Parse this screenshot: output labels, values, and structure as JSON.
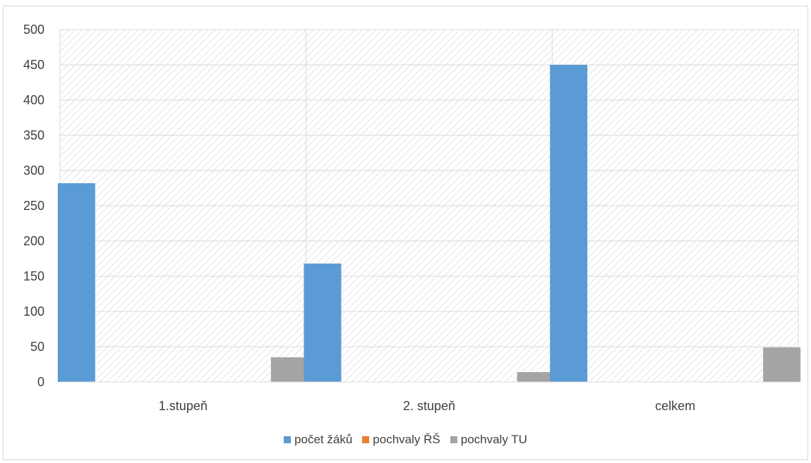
{
  "chart_data": {
    "type": "bar",
    "title": "",
    "xlabel": "",
    "ylabel": "",
    "categories": [
      "1.stupeň",
      "2. stupeň",
      "celkem"
    ],
    "series": [
      {
        "name": "počet žáků",
        "values": [
          282,
          168,
          450
        ],
        "color": "#5b9bd5"
      },
      {
        "name": "pochvaly ŘŠ",
        "values": [
          0,
          0,
          0
        ],
        "color": "#ed7d31"
      },
      {
        "name": "pochvaly TU",
        "values": [
          35,
          14,
          49
        ],
        "color": "#a5a5a5"
      }
    ],
    "ylim": [
      0,
      500
    ],
    "yticks": [
      0,
      50,
      100,
      150,
      200,
      250,
      300,
      350,
      400,
      450,
      500
    ],
    "grid": true,
    "plot_background": "diagonal-hatch",
    "legend_position": "bottom"
  }
}
